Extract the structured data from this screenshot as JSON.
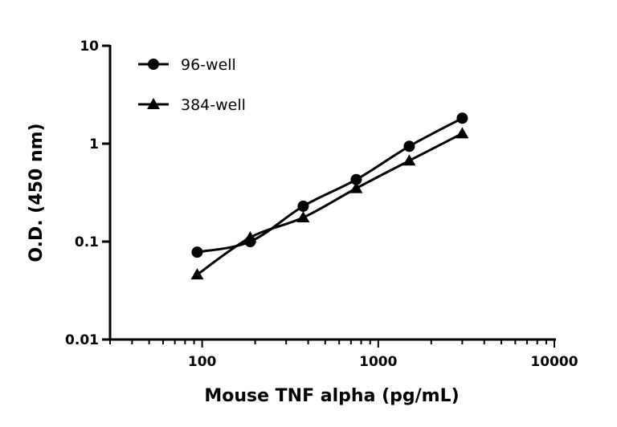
{
  "chart_data": {
    "type": "line",
    "title": "",
    "xlabel": "Mouse TNF alpha (pg/mL)",
    "ylabel": "O.D. (450 nm)",
    "x_scale": "log",
    "y_scale": "log",
    "xlim": [
      30,
      10000
    ],
    "ylim": [
      0.01,
      10
    ],
    "x_ticks": [
      "100",
      "1000",
      "10000"
    ],
    "y_ticks": [
      "0.01",
      "0.1",
      "1",
      "10"
    ],
    "grid": false,
    "legend_position": "top-left",
    "x": [
      93.75,
      187.5,
      375,
      750,
      1500,
      3000
    ],
    "series": [
      {
        "name": "96-well",
        "marker": "circle",
        "color": "#000000",
        "values": [
          0.078,
          0.1,
          0.23,
          0.43,
          0.94,
          1.82
        ]
      },
      {
        "name": "384-well",
        "marker": "triangle",
        "color": "#000000",
        "values": [
          0.046,
          0.11,
          0.176,
          0.35,
          0.67,
          1.27
        ]
      }
    ]
  }
}
